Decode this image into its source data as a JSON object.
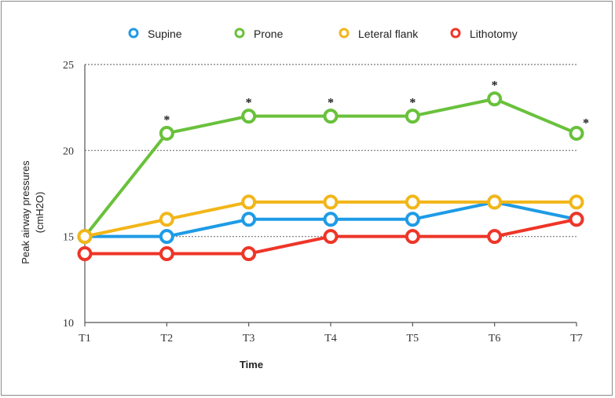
{
  "chart_data": {
    "type": "line",
    "categories": [
      "T1",
      "T2",
      "T3",
      "T4",
      "T5",
      "T6",
      "T7"
    ],
    "series": [
      {
        "name": "Supine",
        "color": "#1e9be6",
        "values": [
          15,
          15,
          16,
          16,
          16,
          17,
          16
        ]
      },
      {
        "name": "Prone",
        "color": "#69c13b",
        "values": [
          15,
          21,
          22,
          22,
          22,
          23,
          21
        ]
      },
      {
        "name": "Leteral flank",
        "color": "#f2b619",
        "values": [
          15,
          16,
          17,
          17,
          17,
          17,
          17
        ]
      },
      {
        "name": "Lithotomy",
        "color": "#ee3527",
        "values": [
          14,
          14,
          14,
          15,
          15,
          15,
          16
        ]
      }
    ],
    "ylim": [
      10,
      25
    ],
    "yticks": [
      "10",
      "15",
      "20",
      "25"
    ],
    "grid": true,
    "legend": "top",
    "ylabel_line1": "Peak airway pressures",
    "ylabel_line2": "(cmH2O)",
    "xlabel": "Time",
    "significance": {
      "marker": "*",
      "series": "Prone",
      "categories": [
        "T2",
        "T3",
        "T4",
        "T5",
        "T6",
        "T7"
      ]
    }
  }
}
